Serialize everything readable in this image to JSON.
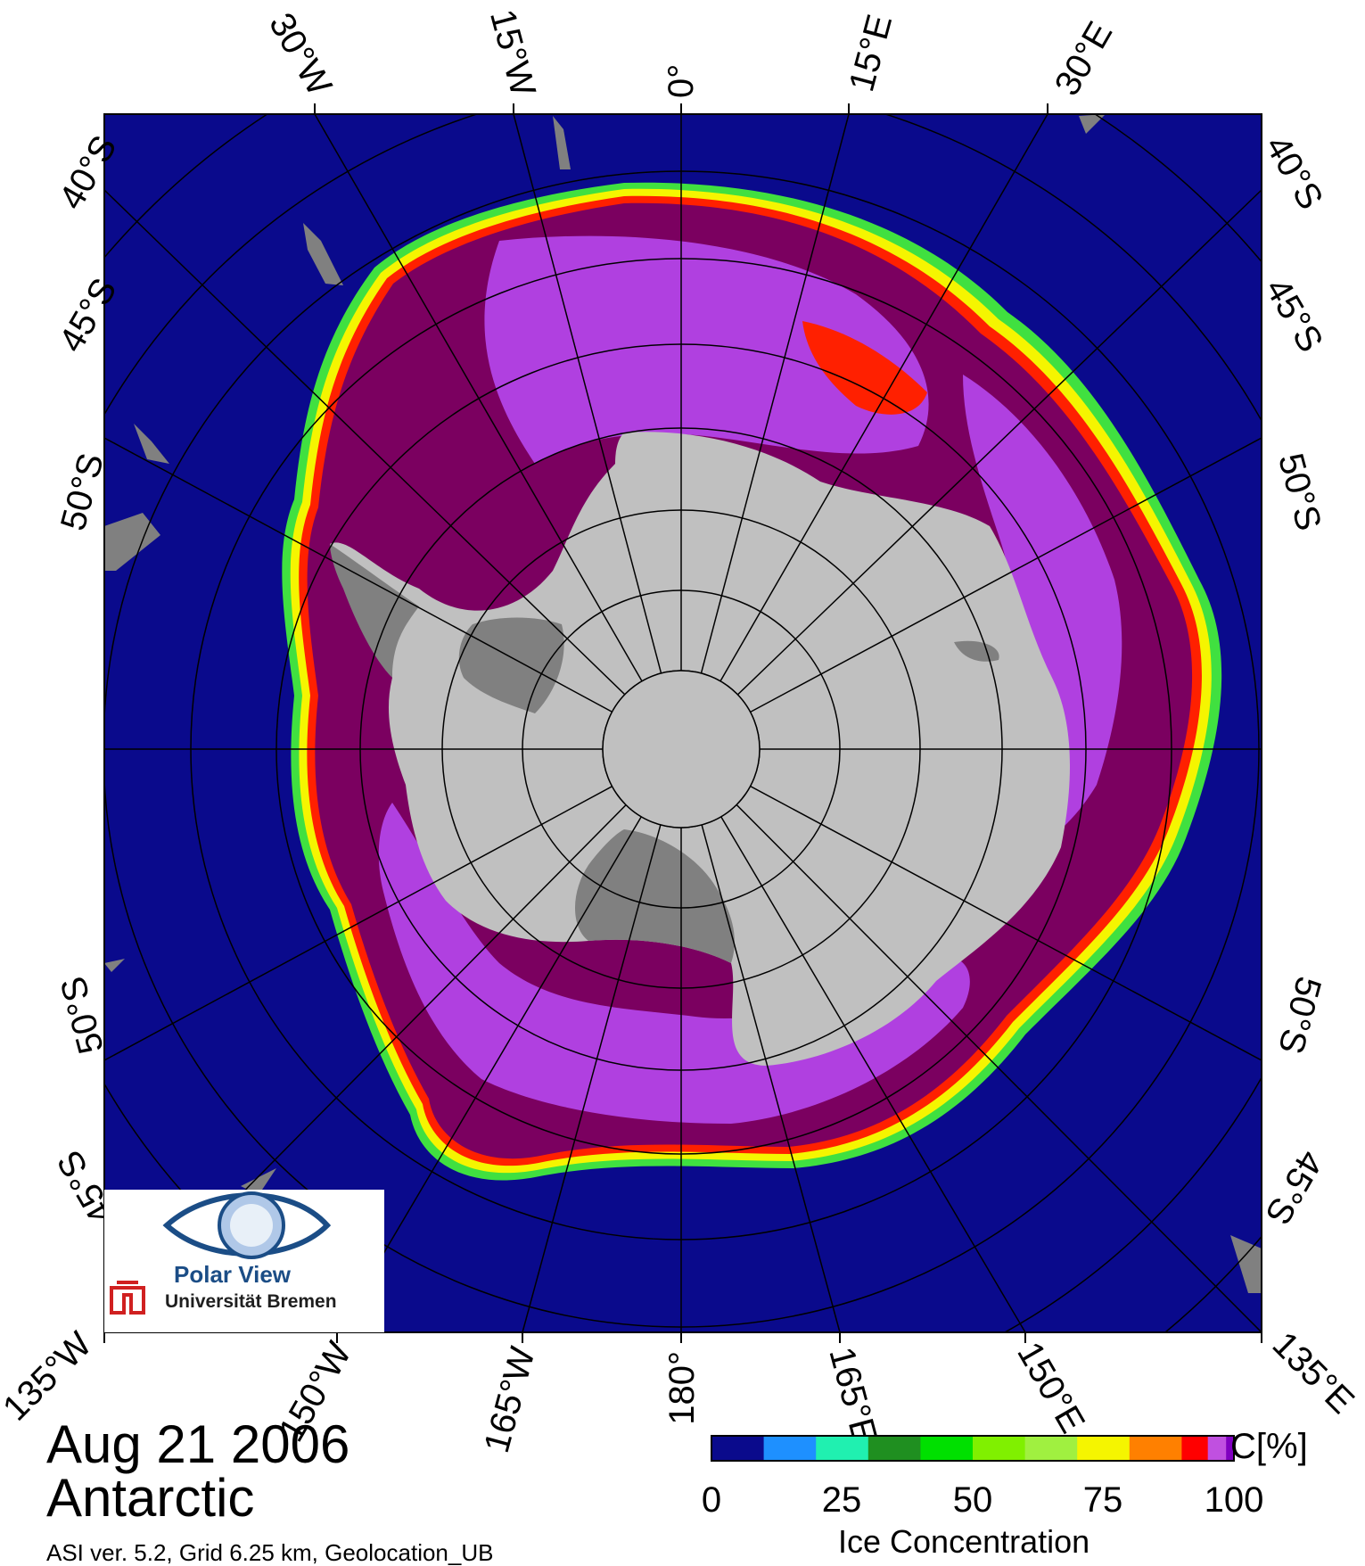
{
  "header": {
    "date": "Aug 21 2006",
    "region": "Antarctic",
    "meta": "ASI ver. 5.2,  Grid 6.25 km, Geolocation_UB"
  },
  "map": {
    "projection": "south-polar-stereographic",
    "colors": {
      "ocean": "#0a0a8c",
      "land": "#c0c0c0",
      "ice_shelf": "#808080",
      "ice_high": "#7b0060",
      "ice_mid": "#b040e0",
      "ice_edge_red": "#ff2000",
      "ice_edge_yellow": "#f5f500",
      "ice_edge_green": "#40e040",
      "grid": "#000000"
    },
    "longitude_labels_top": [
      "30°W",
      "15°W",
      "0°",
      "15°E",
      "30°E"
    ],
    "longitude_labels_bottom": [
      "135°W",
      "150°W",
      "165°W",
      "180°",
      "165°E",
      "150°E",
      "135°E"
    ],
    "latitude_labels_left_top": [
      "40°S",
      "45°S",
      "50°S"
    ],
    "latitude_labels_left_bottom": [
      "50°S",
      "45°S"
    ],
    "latitude_labels_right_top": [
      "40°S",
      "45°S",
      "50°S"
    ],
    "latitude_labels_right_bottom": [
      "50°S",
      "45°S"
    ]
  },
  "logo": {
    "name": "Polar View",
    "institution": "Universität Bremen"
  },
  "colorbar": {
    "title": "C[%]",
    "label": "Ice Concentration",
    "ticks": [
      "0",
      "25",
      "50",
      "75",
      "100"
    ],
    "colors": [
      "#0a0a8c",
      "#1e90ff",
      "#20f0b0",
      "#1f8f20",
      "#00e000",
      "#80f000",
      "#a0f040",
      "#f5f500",
      "#ff8000",
      "#ff0000",
      "#c050e0",
      "#8000c0",
      "#7b0060"
    ]
  }
}
